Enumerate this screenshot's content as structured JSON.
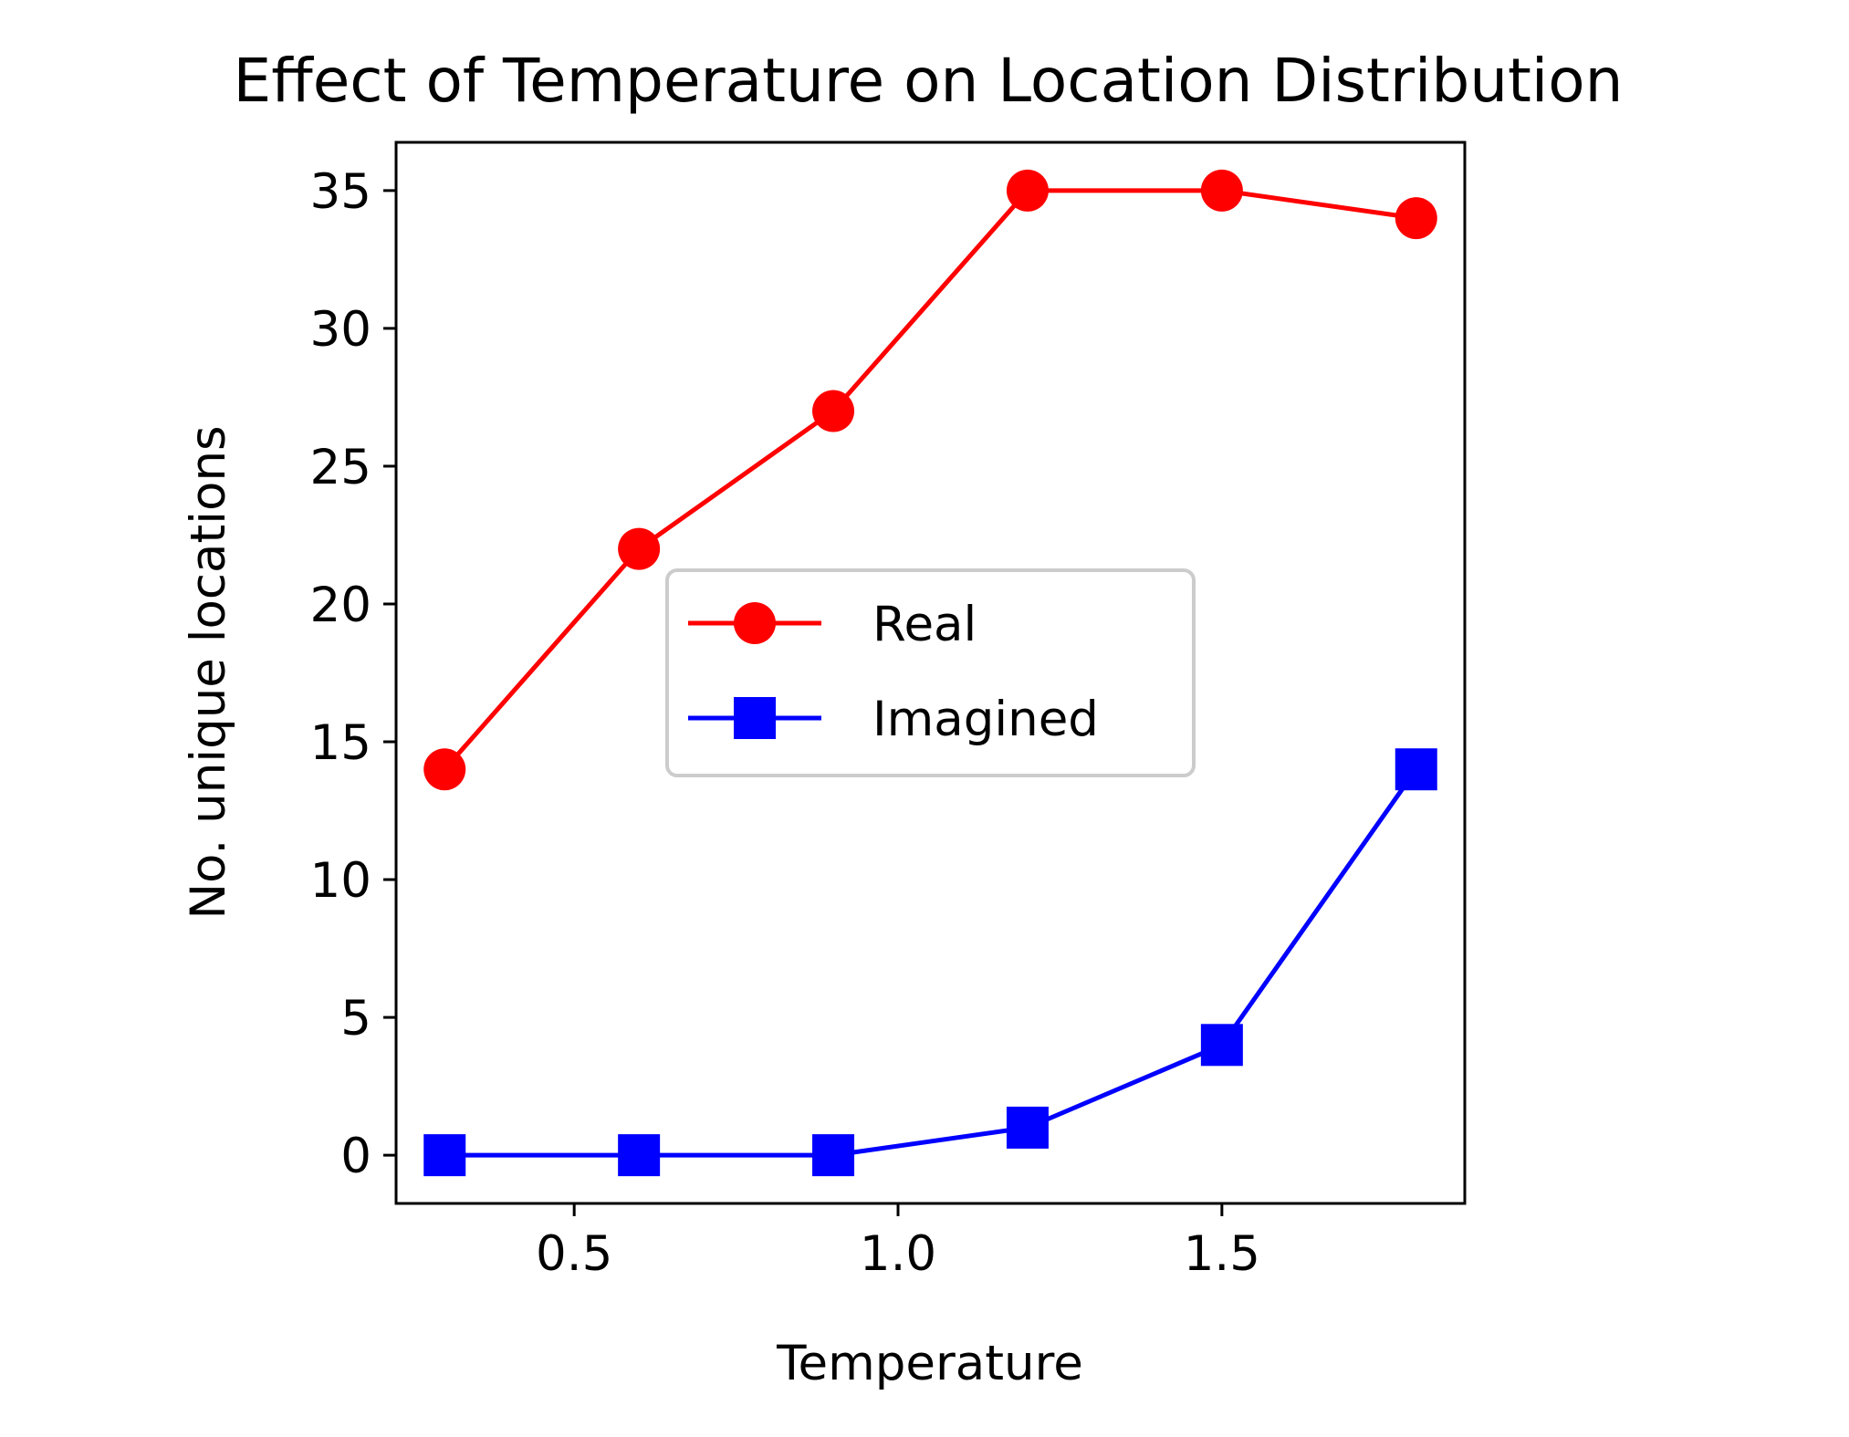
{
  "chart_data": {
    "type": "line",
    "title": "Effect of Temperature on Location Distribution",
    "xlabel": "Temperature",
    "ylabel": "No. unique locations",
    "x": [
      0.3,
      0.6,
      0.9,
      1.2,
      1.5,
      1.8
    ],
    "xlim": [
      0.225,
      1.875
    ],
    "ylim": [
      -1.75,
      36.75
    ],
    "xticks": [
      0.5,
      1.0,
      1.5
    ],
    "xtick_labels": [
      "0.5",
      "1.0",
      "1.5"
    ],
    "yticks": [
      0,
      5,
      10,
      15,
      20,
      25,
      30,
      35
    ],
    "ytick_labels": [
      "0",
      "5",
      "10",
      "15",
      "20",
      "25",
      "30",
      "35"
    ],
    "grid": false,
    "legend_position": "center",
    "series": [
      {
        "name": "Real",
        "values": [
          14,
          22,
          27,
          35,
          35,
          34
        ],
        "color": "#ff0000",
        "marker": "circle"
      },
      {
        "name": "Imagined",
        "values": [
          0,
          0,
          0,
          1,
          4,
          14
        ],
        "color": "#0000ff",
        "marker": "square"
      }
    ]
  }
}
